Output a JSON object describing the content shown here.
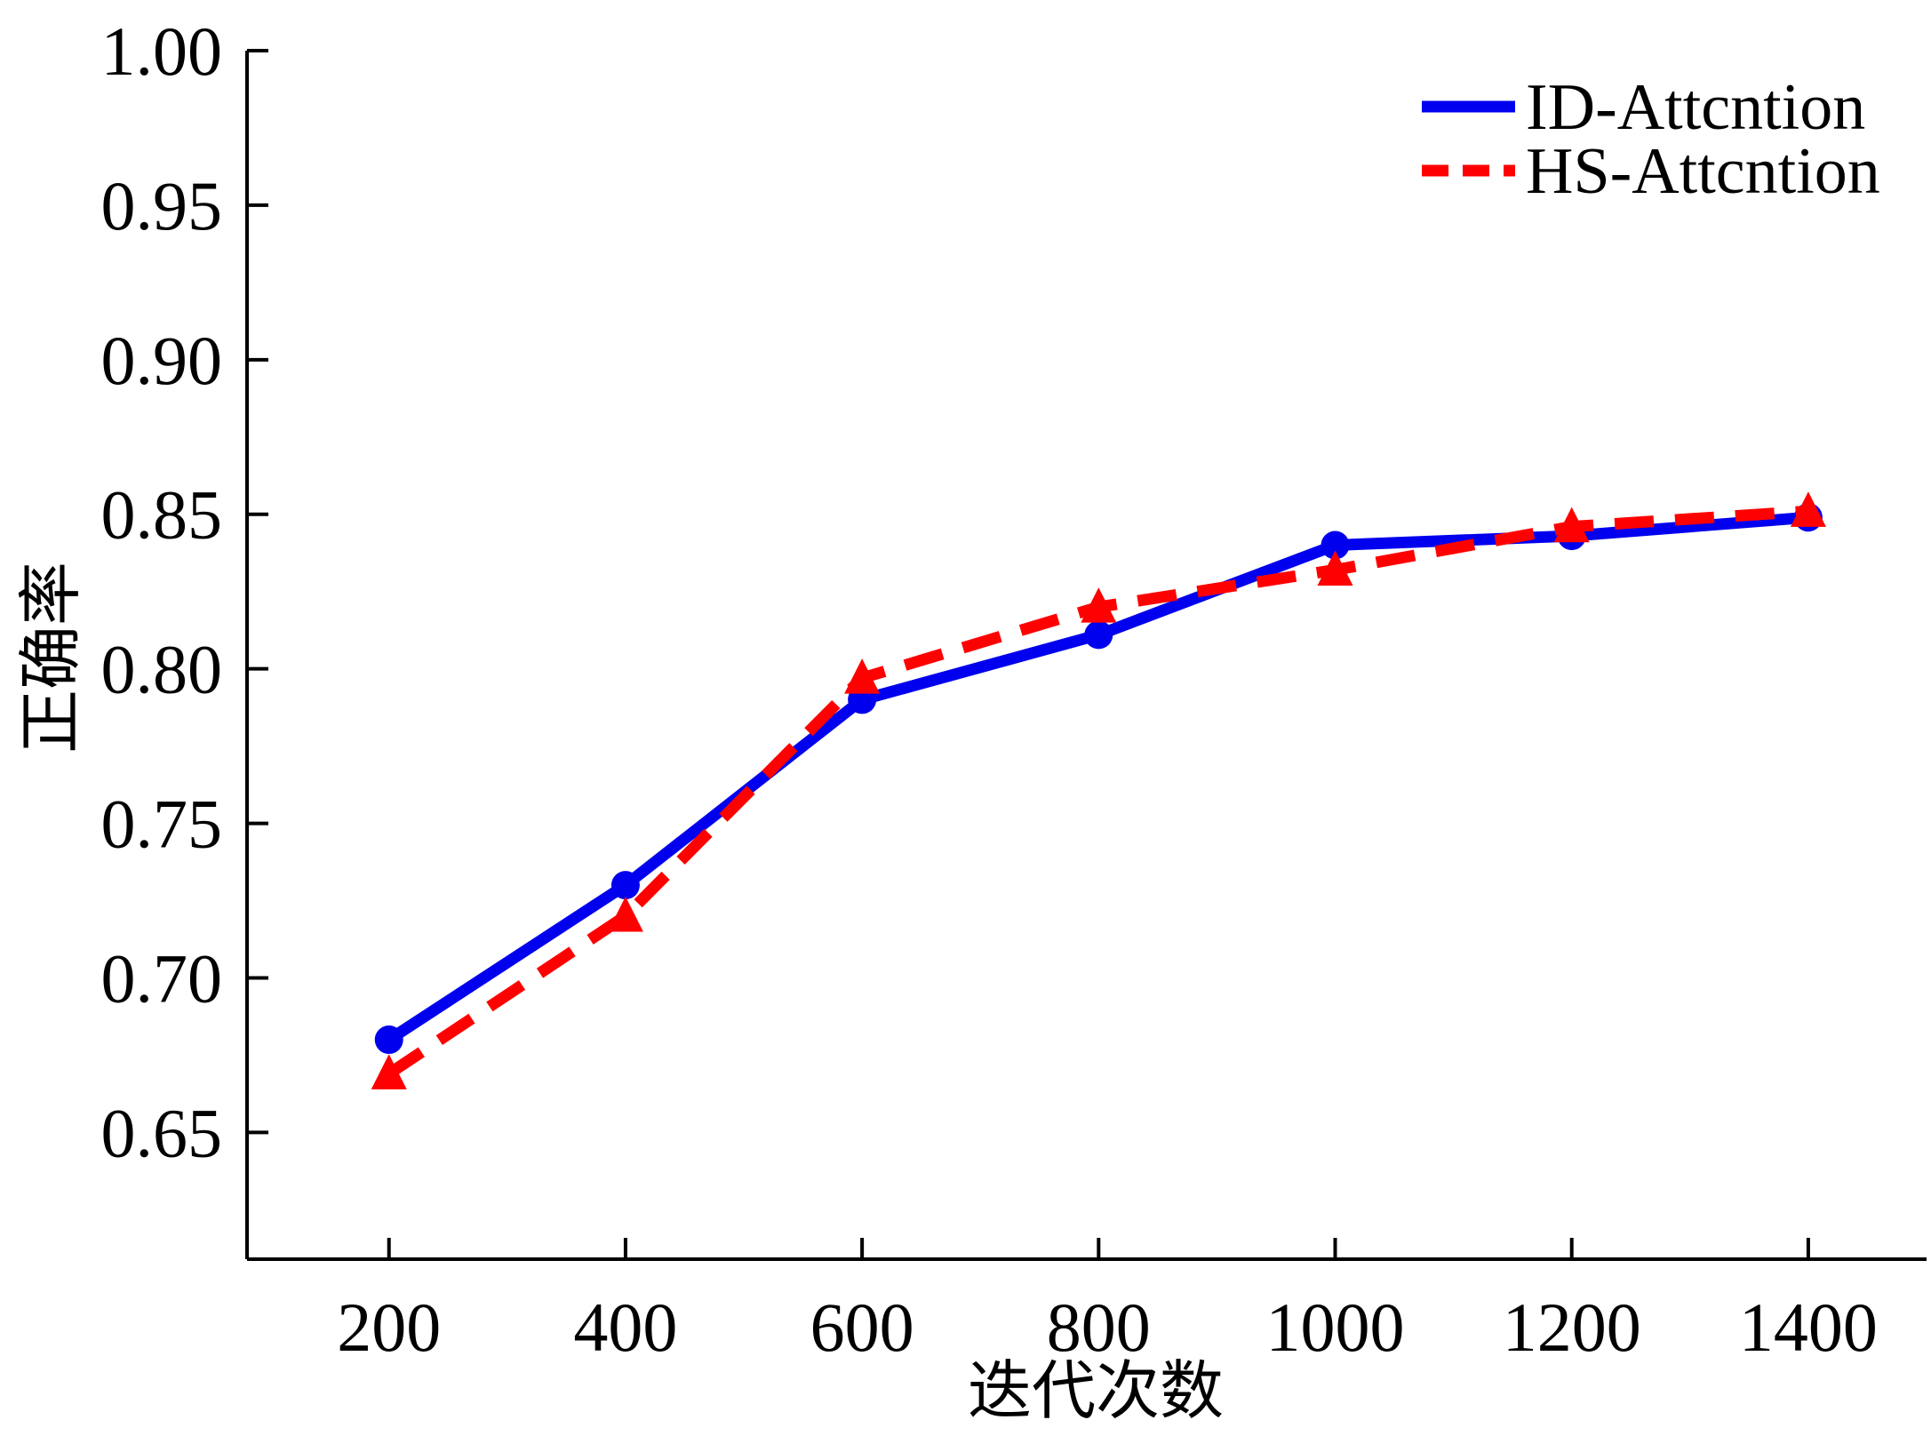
{
  "chart_data": {
    "type": "line",
    "title": "",
    "xlabel": "迭代次数",
    "ylabel": "正确率",
    "x": [
      200,
      400,
      600,
      800,
      1000,
      1200,
      1400
    ],
    "xlim": [
      80,
      1500
    ],
    "ylim": [
      0.609,
      1.0
    ],
    "xticks": [
      200,
      400,
      600,
      800,
      1000,
      1200,
      1400
    ],
    "yticks": [
      0.65,
      0.7,
      0.75,
      0.8,
      0.85,
      0.9,
      0.95,
      1.0
    ],
    "ytick_labels": [
      "0.65",
      "0.70",
      "0.75",
      "0.80",
      "0.85",
      "0.90",
      "0.95",
      "1.00"
    ],
    "grid": false,
    "legend_position": "top-right",
    "series": [
      {
        "name": "ID-Attcntion",
        "values": [
          0.68,
          0.73,
          0.79,
          0.811,
          0.84,
          0.843,
          0.849
        ],
        "color": "#0000ee",
        "line_style": "solid",
        "marker": "circle"
      },
      {
        "name": "HS-Attcntion",
        "values": [
          0.669,
          0.72,
          0.797,
          0.82,
          0.832,
          0.846,
          0.851
        ],
        "color": "#ff0000",
        "line_style": "dashed",
        "marker": "triangle"
      }
    ]
  }
}
